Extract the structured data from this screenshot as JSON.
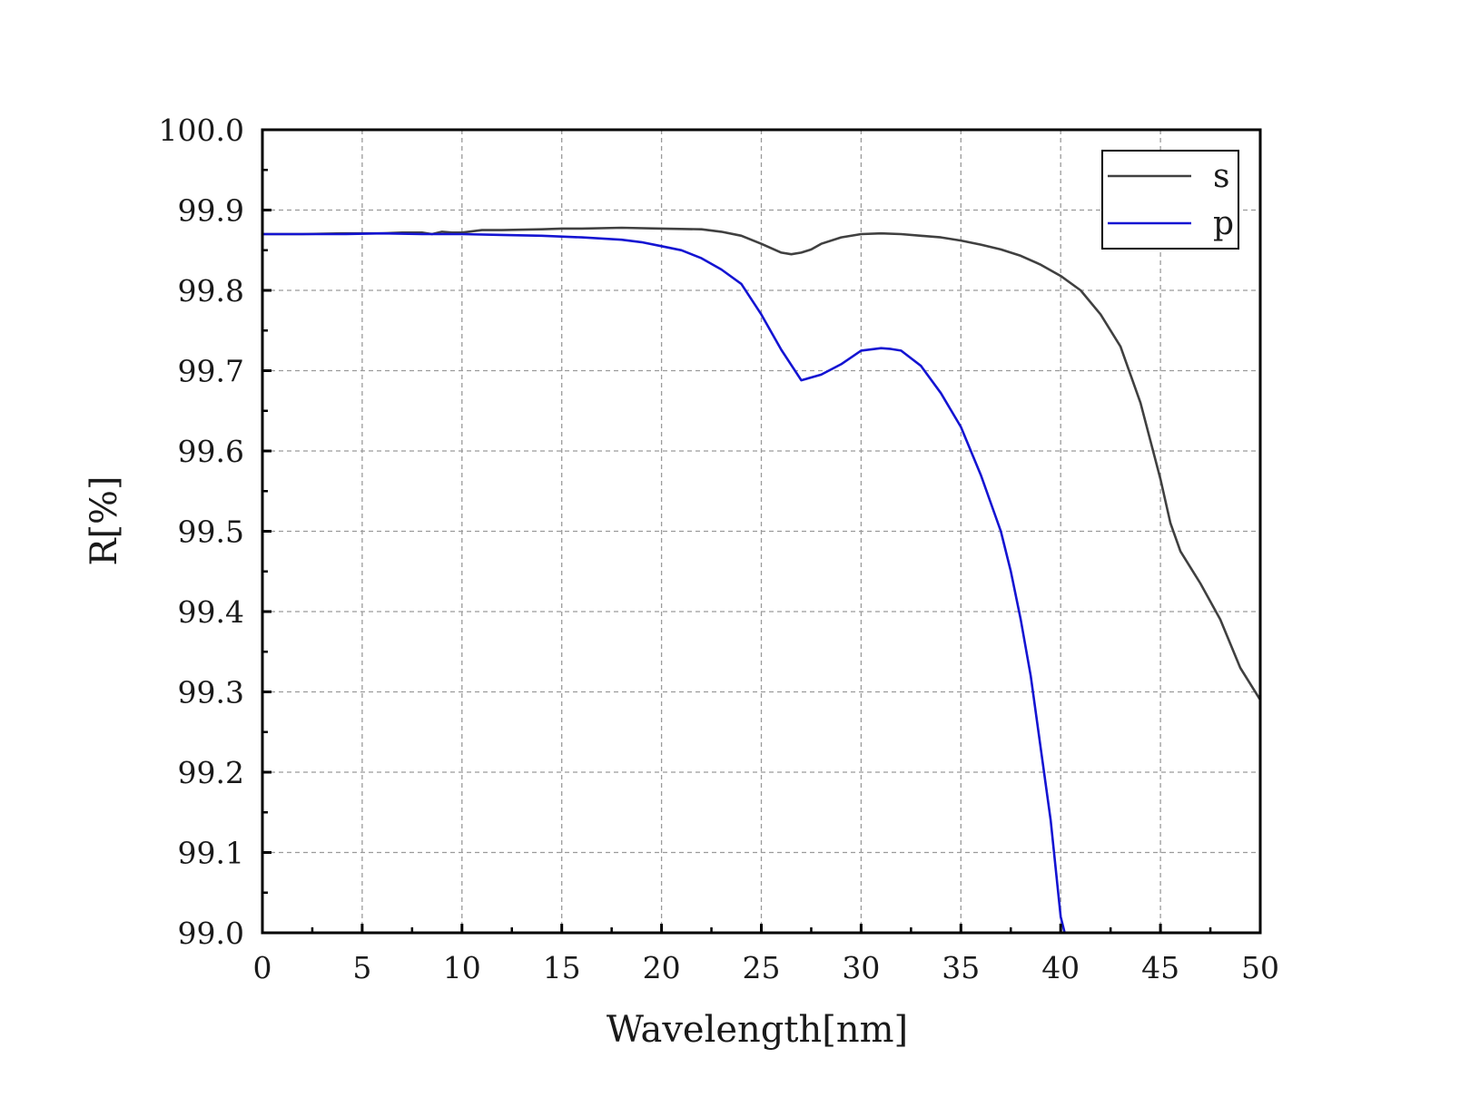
{
  "chart_data": {
    "type": "line",
    "title": "",
    "xlabel": "Wavelength[nm]",
    "ylabel": "R[%]",
    "xlim": [
      0,
      50
    ],
    "ylim": [
      99.0,
      100.0
    ],
    "xticks": [
      "0",
      "5",
      "10",
      "15",
      "20",
      "25",
      "30",
      "35",
      "40",
      "45",
      "50"
    ],
    "yticks": [
      "99.0",
      "99.1",
      "99.2",
      "99.3",
      "99.4",
      "99.5",
      "99.6",
      "99.7",
      "99.8",
      "99.9",
      "100.0"
    ],
    "grid": true,
    "legend_position": "top-right",
    "series": [
      {
        "name": "s",
        "color": "#404040",
        "x": [
          0,
          2,
          4,
          6,
          7,
          8,
          8.5,
          9,
          9.5,
          10,
          11,
          12,
          14,
          15,
          16,
          18,
          20,
          22,
          23,
          24,
          25,
          26,
          26.5,
          27,
          27.5,
          28,
          29,
          30,
          31,
          32,
          33,
          34,
          35,
          36,
          37,
          38,
          39,
          40,
          41,
          42,
          43,
          44,
          45,
          45.5,
          46,
          47,
          48,
          49,
          50
        ],
        "y": [
          99.87,
          99.87,
          99.871,
          99.871,
          99.872,
          99.872,
          99.87,
          99.873,
          99.872,
          99.872,
          99.875,
          99.875,
          99.876,
          99.877,
          99.877,
          99.878,
          99.877,
          99.876,
          99.873,
          99.868,
          99.858,
          99.847,
          99.845,
          99.847,
          99.851,
          99.858,
          99.866,
          99.87,
          99.871,
          99.87,
          99.868,
          99.866,
          99.862,
          99.857,
          99.851,
          99.843,
          99.832,
          99.818,
          99.8,
          99.77,
          99.73,
          99.66,
          99.565,
          99.51,
          99.475,
          99.435,
          99.39,
          99.33,
          99.29
        ]
      },
      {
        "name": "p",
        "color": "#1414d2",
        "x": [
          0,
          2,
          4,
          6,
          8,
          10,
          12,
          14,
          16,
          18,
          19,
          20,
          21,
          22,
          23,
          24,
          25,
          26,
          27,
          28,
          29,
          30,
          31,
          31.5,
          32,
          33,
          34,
          35,
          36,
          37,
          37.5,
          38,
          38.5,
          39,
          39.5,
          40,
          40.2,
          40.4
        ],
        "y": [
          99.87,
          99.87,
          99.87,
          99.871,
          99.87,
          99.87,
          99.869,
          99.868,
          99.866,
          99.863,
          99.86,
          99.855,
          99.85,
          99.84,
          99.826,
          99.808,
          99.77,
          99.726,
          99.688,
          99.695,
          99.708,
          99.725,
          99.728,
          99.727,
          99.725,
          99.706,
          99.672,
          99.63,
          99.57,
          99.5,
          99.45,
          99.39,
          99.32,
          99.23,
          99.14,
          99.02,
          99.0,
          99.0
        ]
      }
    ]
  }
}
